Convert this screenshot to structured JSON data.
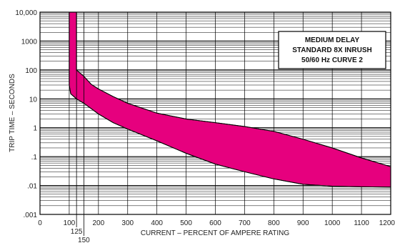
{
  "chart_data": {
    "type": "area",
    "xlabel": "CURRENT – PERCENT OF AMPERE RATING",
    "ylabel": "TRIP TIME – SECONDS",
    "xlim": [
      0,
      1200
    ],
    "ylim": [
      0.001,
      10000
    ],
    "y_scale": "log",
    "grid": true,
    "x_ticks": [
      "0",
      "100",
      "200",
      "300",
      "400",
      "500",
      "600",
      "700",
      "800",
      "900",
      "1000",
      "1100",
      "1200"
    ],
    "x_tick_values": [
      0,
      100,
      200,
      300,
      400,
      500,
      600,
      700,
      800,
      900,
      1000,
      1100,
      1200
    ],
    "x_extra_ticks": [
      {
        "label": "125",
        "value": 125
      },
      {
        "label": "150",
        "value": 150
      }
    ],
    "y_ticks": [
      {
        "label": ".001",
        "value": 0.001
      },
      {
        "label": ".01",
        "value": 0.01
      },
      {
        "label": ".1",
        "value": 0.1
      },
      {
        "label": "1",
        "value": 1
      },
      {
        "label": "10",
        "value": 10
      },
      {
        "label": "100",
        "value": 100
      },
      {
        "label": "1000",
        "value": 1000
      },
      {
        "label": "10,000",
        "value": 10000
      }
    ],
    "legend_lines": [
      "MEDIUM DELAY",
      "STANDARD 8X INRUSH",
      "50/60 Hz CURVE 2"
    ],
    "legend_position": "top-right",
    "band_color": "#e6007e",
    "upper_curve": [
      {
        "x": 125,
        "y": 10000
      },
      {
        "x": 125,
        "y": 100
      },
      {
        "x": 150,
        "y": 60
      },
      {
        "x": 175,
        "y": 32
      },
      {
        "x": 200,
        "y": 22
      },
      {
        "x": 250,
        "y": 12
      },
      {
        "x": 300,
        "y": 7
      },
      {
        "x": 400,
        "y": 3.2
      },
      {
        "x": 500,
        "y": 2
      },
      {
        "x": 600,
        "y": 1.5
      },
      {
        "x": 700,
        "y": 1.1
      },
      {
        "x": 800,
        "y": 0.75
      },
      {
        "x": 900,
        "y": 0.4
      },
      {
        "x": 1000,
        "y": 0.2
      },
      {
        "x": 1100,
        "y": 0.09
      },
      {
        "x": 1200,
        "y": 0.045
      }
    ],
    "lower_curve": [
      {
        "x": 100,
        "y": 10000
      },
      {
        "x": 100,
        "y": 30
      },
      {
        "x": 105,
        "y": 15
      },
      {
        "x": 125,
        "y": 10
      },
      {
        "x": 150,
        "y": 7
      },
      {
        "x": 200,
        "y": 3
      },
      {
        "x": 250,
        "y": 1.5
      },
      {
        "x": 300,
        "y": 0.9
      },
      {
        "x": 400,
        "y": 0.35
      },
      {
        "x": 500,
        "y": 0.13
      },
      {
        "x": 600,
        "y": 0.055
      },
      {
        "x": 700,
        "y": 0.03
      },
      {
        "x": 800,
        "y": 0.017
      },
      {
        "x": 900,
        "y": 0.011
      },
      {
        "x": 1000,
        "y": 0.0095
      },
      {
        "x": 1100,
        "y": 0.009
      },
      {
        "x": 1200,
        "y": 0.0088
      }
    ]
  }
}
